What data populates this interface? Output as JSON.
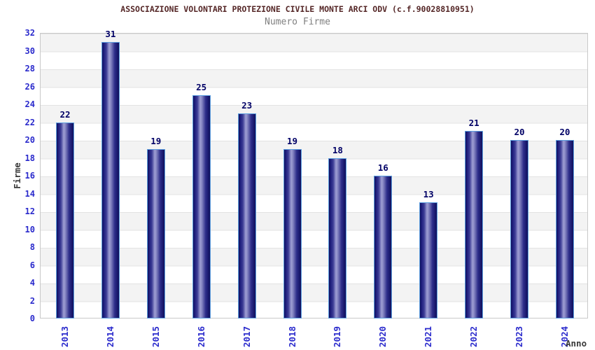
{
  "chart_data": {
    "type": "bar",
    "title": "ASSOCIAZIONE VOLONTARI PROTEZIONE CIVILE MONTE ARCI ODV (c.f.90028810951)",
    "subtitle": "Numero Firme",
    "xlabel": "Anno",
    "ylabel": "Firme",
    "categories": [
      "2013",
      "2014",
      "2015",
      "2016",
      "2017",
      "2018",
      "2019",
      "2020",
      "2021",
      "2022",
      "2023",
      "2024"
    ],
    "values": [
      22,
      31,
      19,
      25,
      23,
      19,
      18,
      16,
      13,
      21,
      20,
      20
    ],
    "ylim": [
      0,
      32
    ],
    "ytick_step": 2,
    "grid": "horizontal-bands",
    "legend": "none",
    "bar_labels_shown": true,
    "x_tick_rotation_deg": -90
  },
  "colors": {
    "title": "#552727",
    "subtitle": "#808080",
    "tick_labels": "#2a2acc",
    "bar_value_labels": "#000066",
    "bar_dark": "#14145f",
    "bar_light": "#9f9fd4",
    "bar_outline": "#5d9fe0",
    "band_gray": "#f3f3f3",
    "band_white": "#ffffff",
    "gridline": "#e3e3e3",
    "axis_titles": "#3a3a3a",
    "plot_border": "#c9c9c9",
    "background": "#ffffff"
  }
}
